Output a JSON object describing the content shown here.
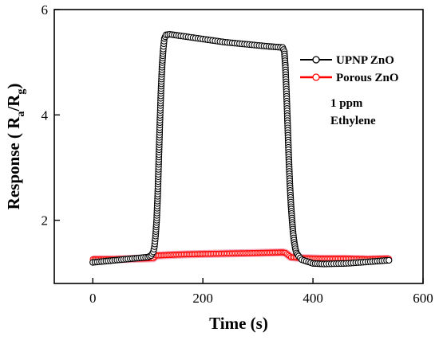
{
  "chart_data": {
    "type": "line",
    "xlabel": "Time (s)",
    "ylabel": "Response ( R",
    "ylabel_sub_a": "a",
    "ylabel_mid": "/R",
    "ylabel_sub_g": "g",
    "ylabel_end": ")",
    "xlim": [
      -70,
      600
    ],
    "ylim": [
      0.8,
      6.0
    ],
    "xticks": [
      0,
      200,
      400,
      600
    ],
    "yticks": [
      2,
      4,
      6
    ],
    "xtick_labels": [
      "0",
      "200",
      "400",
      "600"
    ],
    "ytick_labels": [
      "2",
      "4",
      "6"
    ],
    "grid": false,
    "legend_position": "top-right",
    "annotation_lines": [
      "1 ppm",
      "Ethylene"
    ],
    "series": [
      {
        "name": "UPNP ZnO",
        "color": "#000000",
        "marker": "open-circle",
        "points": [
          [
            0,
            1.2
          ],
          [
            20,
            1.22
          ],
          [
            40,
            1.24
          ],
          [
            60,
            1.26
          ],
          [
            80,
            1.28
          ],
          [
            100,
            1.3
          ],
          [
            106,
            1.33
          ],
          [
            110,
            1.4
          ],
          [
            112,
            1.5
          ],
          [
            114,
            1.7
          ],
          [
            116,
            2.0
          ],
          [
            118,
            2.5
          ],
          [
            120,
            3.2
          ],
          [
            122,
            3.9
          ],
          [
            124,
            4.5
          ],
          [
            126,
            4.95
          ],
          [
            128,
            5.25
          ],
          [
            130,
            5.45
          ],
          [
            133,
            5.52
          ],
          [
            140,
            5.53
          ],
          [
            160,
            5.5
          ],
          [
            200,
            5.44
          ],
          [
            240,
            5.38
          ],
          [
            280,
            5.34
          ],
          [
            320,
            5.3
          ],
          [
            345,
            5.28
          ],
          [
            348,
            5.2
          ],
          [
            350,
            4.9
          ],
          [
            352,
            4.4
          ],
          [
            354,
            3.8
          ],
          [
            356,
            3.2
          ],
          [
            358,
            2.7
          ],
          [
            360,
            2.3
          ],
          [
            362,
            2.0
          ],
          [
            364,
            1.75
          ],
          [
            366,
            1.58
          ],
          [
            368,
            1.46
          ],
          [
            370,
            1.38
          ],
          [
            374,
            1.32
          ],
          [
            380,
            1.25
          ],
          [
            400,
            1.18
          ],
          [
            420,
            1.17
          ],
          [
            460,
            1.18
          ],
          [
            500,
            1.21
          ],
          [
            538,
            1.24
          ]
        ]
      },
      {
        "name": "Porous ZnO",
        "color": "#ff0000",
        "marker": "open-circle",
        "points": [
          [
            0,
            1.26
          ],
          [
            40,
            1.26
          ],
          [
            80,
            1.27
          ],
          [
            110,
            1.28
          ],
          [
            115,
            1.33
          ],
          [
            160,
            1.35
          ],
          [
            200,
            1.36
          ],
          [
            250,
            1.37
          ],
          [
            300,
            1.38
          ],
          [
            345,
            1.39
          ],
          [
            350,
            1.38
          ],
          [
            360,
            1.3
          ],
          [
            380,
            1.28
          ],
          [
            420,
            1.27
          ],
          [
            460,
            1.27
          ],
          [
            500,
            1.26
          ],
          [
            538,
            1.27
          ]
        ]
      }
    ]
  }
}
